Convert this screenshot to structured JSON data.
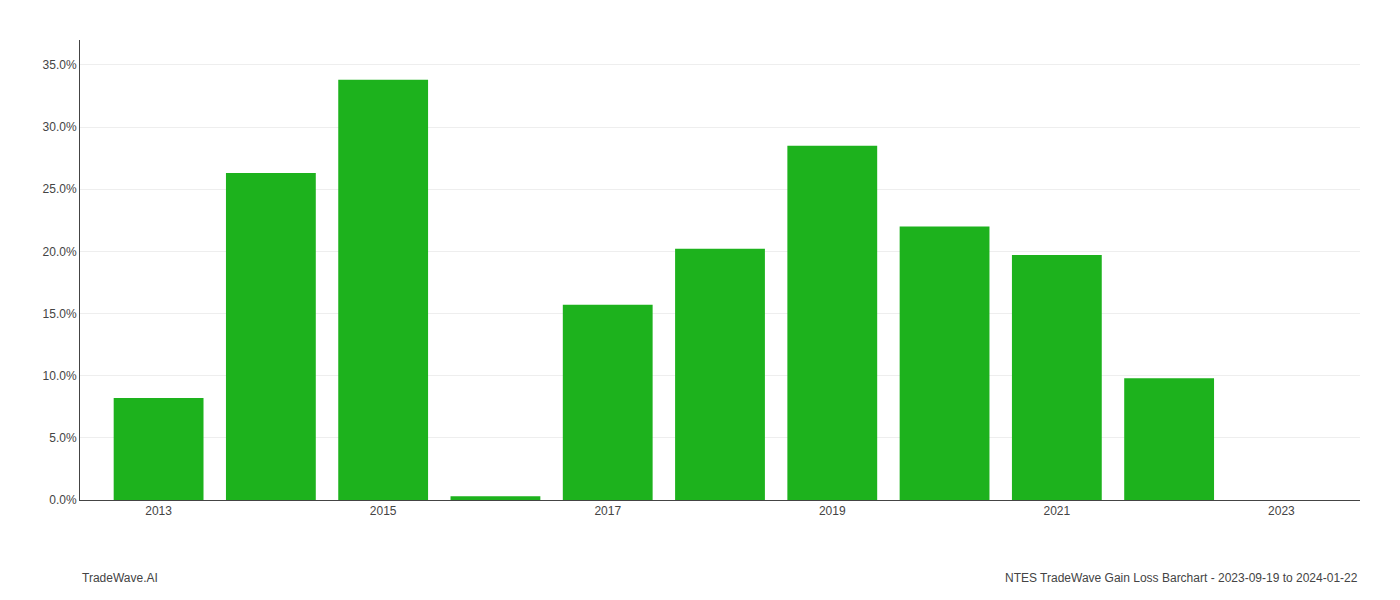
{
  "chart_data": {
    "type": "bar",
    "x": [
      2013,
      2014,
      2015,
      2016,
      2017,
      2018,
      2019,
      2020,
      2021,
      2022
    ],
    "values": [
      0.082,
      0.263,
      0.338,
      0.003,
      0.157,
      0.202,
      0.285,
      0.22,
      0.197,
      0.098
    ],
    "color": "#1db21d",
    "xlim": [
      2012.3,
      2023.7
    ],
    "xticks": [
      2013,
      2015,
      2017,
      2019,
      2021,
      2023
    ],
    "ylim": [
      0,
      0.37
    ],
    "yticks": [
      {
        "value": 0.0,
        "label": "0.0%"
      },
      {
        "value": 0.05,
        "label": "5.0%"
      },
      {
        "value": 0.1,
        "label": "10.0%"
      },
      {
        "value": 0.15,
        "label": "15.0%"
      },
      {
        "value": 0.2,
        "label": "20.0%"
      },
      {
        "value": 0.25,
        "label": "25.0%"
      },
      {
        "value": 0.3,
        "label": "30.0%"
      },
      {
        "value": 0.35,
        "label": "35.0%"
      }
    ],
    "grid": "y",
    "annotations": [
      "TradeWave.AI",
      "NTES TradeWave Gain Loss Barchart - 2023-09-19 to 2024-01-22"
    ]
  }
}
